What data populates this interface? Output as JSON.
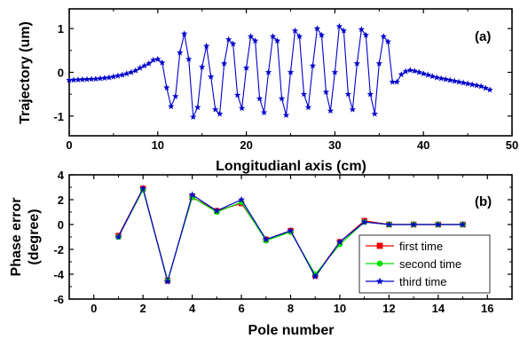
{
  "chart_data": [
    {
      "type": "line",
      "panel_label": "(a)",
      "xlabel": "Longitudianl axis (cm)",
      "ylabel": "Trajectory (um)",
      "xlim": [
        0,
        50
      ],
      "ylim": [
        -1.45,
        1.45
      ],
      "xticks": [
        "0",
        "10",
        "20",
        "30",
        "40",
        "50"
      ],
      "yticks": [
        "-1",
        "0",
        "1"
      ],
      "grid": false,
      "series": [
        {
          "color": "#0000cc",
          "marker": "star",
          "x": [
            0.0,
            0.5,
            1.0,
            1.5,
            2.0,
            2.5,
            3.0,
            3.5,
            4.0,
            4.5,
            5.0,
            5.5,
            6.0,
            6.5,
            7.0,
            7.5,
            8.0,
            8.5,
            9.0,
            9.5,
            10.0,
            10.5,
            11.0,
            11.5,
            12.0,
            12.5,
            13.0,
            13.5,
            14.0,
            14.5,
            15.0,
            15.5,
            16.0,
            16.5,
            17.0,
            17.5,
            18.0,
            18.5,
            19.0,
            19.5,
            20.0,
            20.5,
            21.0,
            21.5,
            22.0,
            22.5,
            23.0,
            23.5,
            24.0,
            24.5,
            25.0,
            25.5,
            26.0,
            26.5,
            27.0,
            27.5,
            28.0,
            28.5,
            29.0,
            29.5,
            30.0,
            30.5,
            31.0,
            31.5,
            32.0,
            32.5,
            33.0,
            33.5,
            34.0,
            34.5,
            35.0,
            35.5,
            36.0,
            36.5,
            37.0,
            37.5,
            38.0,
            38.5,
            39.0,
            39.5,
            40.0,
            40.5,
            41.0,
            41.5,
            42.0,
            42.5,
            43.0,
            43.5,
            44.0,
            44.5,
            45.0,
            45.5,
            46.0,
            46.5,
            47.0,
            47.5
          ],
          "y": [
            -0.18,
            -0.175,
            -0.17,
            -0.165,
            -0.16,
            -0.155,
            -0.15,
            -0.14,
            -0.13,
            -0.12,
            -0.1,
            -0.08,
            -0.06,
            -0.03,
            0.0,
            0.04,
            0.1,
            0.15,
            0.2,
            0.28,
            0.3,
            0.22,
            -0.35,
            -0.78,
            -0.55,
            0.45,
            0.88,
            0.3,
            -1.02,
            -0.8,
            0.12,
            0.6,
            -0.1,
            -0.85,
            -0.95,
            0.2,
            0.75,
            0.65,
            -0.52,
            -0.82,
            0.1,
            0.82,
            0.72,
            -0.6,
            -0.92,
            0.0,
            0.82,
            0.72,
            -0.6,
            -0.98,
            0.0,
            0.95,
            0.82,
            -0.5,
            -0.8,
            0.15,
            1.0,
            0.85,
            -0.45,
            -0.88,
            0.0,
            1.05,
            0.95,
            -0.5,
            -0.85,
            0.2,
            0.98,
            0.85,
            -0.5,
            -0.95,
            0.2,
            0.82,
            0.7,
            -0.22,
            -0.22,
            -0.05,
            0.02,
            0.05,
            0.03,
            0.0,
            -0.03,
            -0.06,
            -0.09,
            -0.12,
            -0.14,
            -0.16,
            -0.18,
            -0.2,
            -0.22,
            -0.24,
            -0.26,
            -0.28,
            -0.3,
            -0.32,
            -0.36,
            -0.4
          ]
        }
      ]
    },
    {
      "type": "line",
      "panel_label": "(b)",
      "xlabel": "Pole number",
      "ylabel": [
        "Phase error",
        "(degree)"
      ],
      "xlim": [
        -1,
        17
      ],
      "ylim": [
        -6,
        4
      ],
      "xticks": [
        "0",
        "2",
        "4",
        "6",
        "8",
        "10",
        "12",
        "14",
        "16"
      ],
      "yticks": [
        "-6",
        "-4",
        "-2",
        "0",
        "2",
        "4"
      ],
      "grid": false,
      "legend_position": "bottom-right",
      "x": [
        1,
        2,
        3,
        4,
        5,
        6,
        7,
        8,
        9,
        10,
        11,
        12,
        13,
        14,
        15
      ],
      "series": [
        {
          "name": "first time",
          "color": "#ee0000",
          "marker": "square",
          "values": [
            -0.9,
            2.9,
            -4.5,
            2.2,
            1.1,
            1.7,
            -1.2,
            -0.5,
            -4.1,
            -1.4,
            0.3,
            0.0,
            0.0,
            0.0,
            0.0
          ]
        },
        {
          "name": "second time",
          "color": "#00dd00",
          "marker": "circle",
          "values": [
            -1.0,
            2.8,
            -4.5,
            2.2,
            1.0,
            1.8,
            -1.3,
            -0.6,
            -4.0,
            -1.6,
            0.2,
            0.0,
            0.0,
            0.0,
            0.0
          ]
        },
        {
          "name": "third time",
          "color": "#0000cc",
          "marker": "star",
          "values": [
            -1.0,
            2.9,
            -4.6,
            2.4,
            1.1,
            2.0,
            -1.2,
            -0.5,
            -4.2,
            -1.4,
            0.2,
            0.0,
            0.0,
            0.0,
            0.0
          ]
        }
      ]
    }
  ]
}
